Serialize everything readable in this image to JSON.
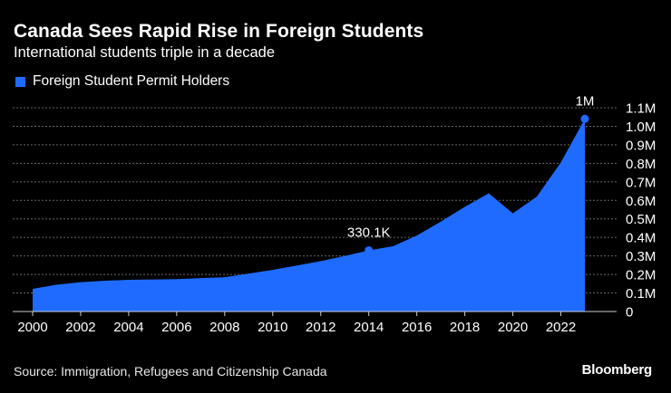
{
  "header": {
    "title": "Canada Sees Rapid Rise in Foreign Students",
    "subtitle": "International students triple in a decade"
  },
  "footer": {
    "source": "Source: Immigration, Refugees and Citizenship Canada",
    "brand": "Bloomberg"
  },
  "colors": {
    "background": "#000000",
    "series": "#1f6bff",
    "grid": "#666666",
    "text": "#ffffff"
  },
  "chart_data": {
    "type": "area",
    "series": [
      {
        "name": "Foreign Student Permit Holders",
        "x": [
          2000,
          2001,
          2002,
          2003,
          2004,
          2005,
          2006,
          2007,
          2008,
          2009,
          2010,
          2011,
          2012,
          2013,
          2014,
          2015,
          2016,
          2017,
          2018,
          2019,
          2020,
          2021,
          2022,
          2023
        ],
        "values": [
          122000,
          145000,
          158000,
          166000,
          171000,
          173000,
          175000,
          180000,
          185000,
          205000,
          225000,
          248000,
          272000,
          300000,
          330100,
          352000,
          410000,
          485000,
          565000,
          638000,
          530000,
          620000,
          805000,
          1040000
        ]
      }
    ],
    "annotations": [
      {
        "x": 2014,
        "y": 330100,
        "label": "330.1K"
      },
      {
        "x": 2023,
        "y": 1040000,
        "label": "1M"
      }
    ],
    "xticks": [
      "2000",
      "2002",
      "2004",
      "2006",
      "2008",
      "2010",
      "2012",
      "2014",
      "2016",
      "2018",
      "2020",
      "2022"
    ],
    "xlim": [
      2000,
      2023
    ],
    "yticks": [
      "0",
      "0.1M",
      "0.2M",
      "0.3M",
      "0.4M",
      "0.5M",
      "0.6M",
      "0.7M",
      "0.8M",
      "0.9M",
      "1.0M",
      "1.1M"
    ],
    "ylim": [
      0,
      1100000
    ],
    "grid": true,
    "legend_position": "top-left"
  }
}
